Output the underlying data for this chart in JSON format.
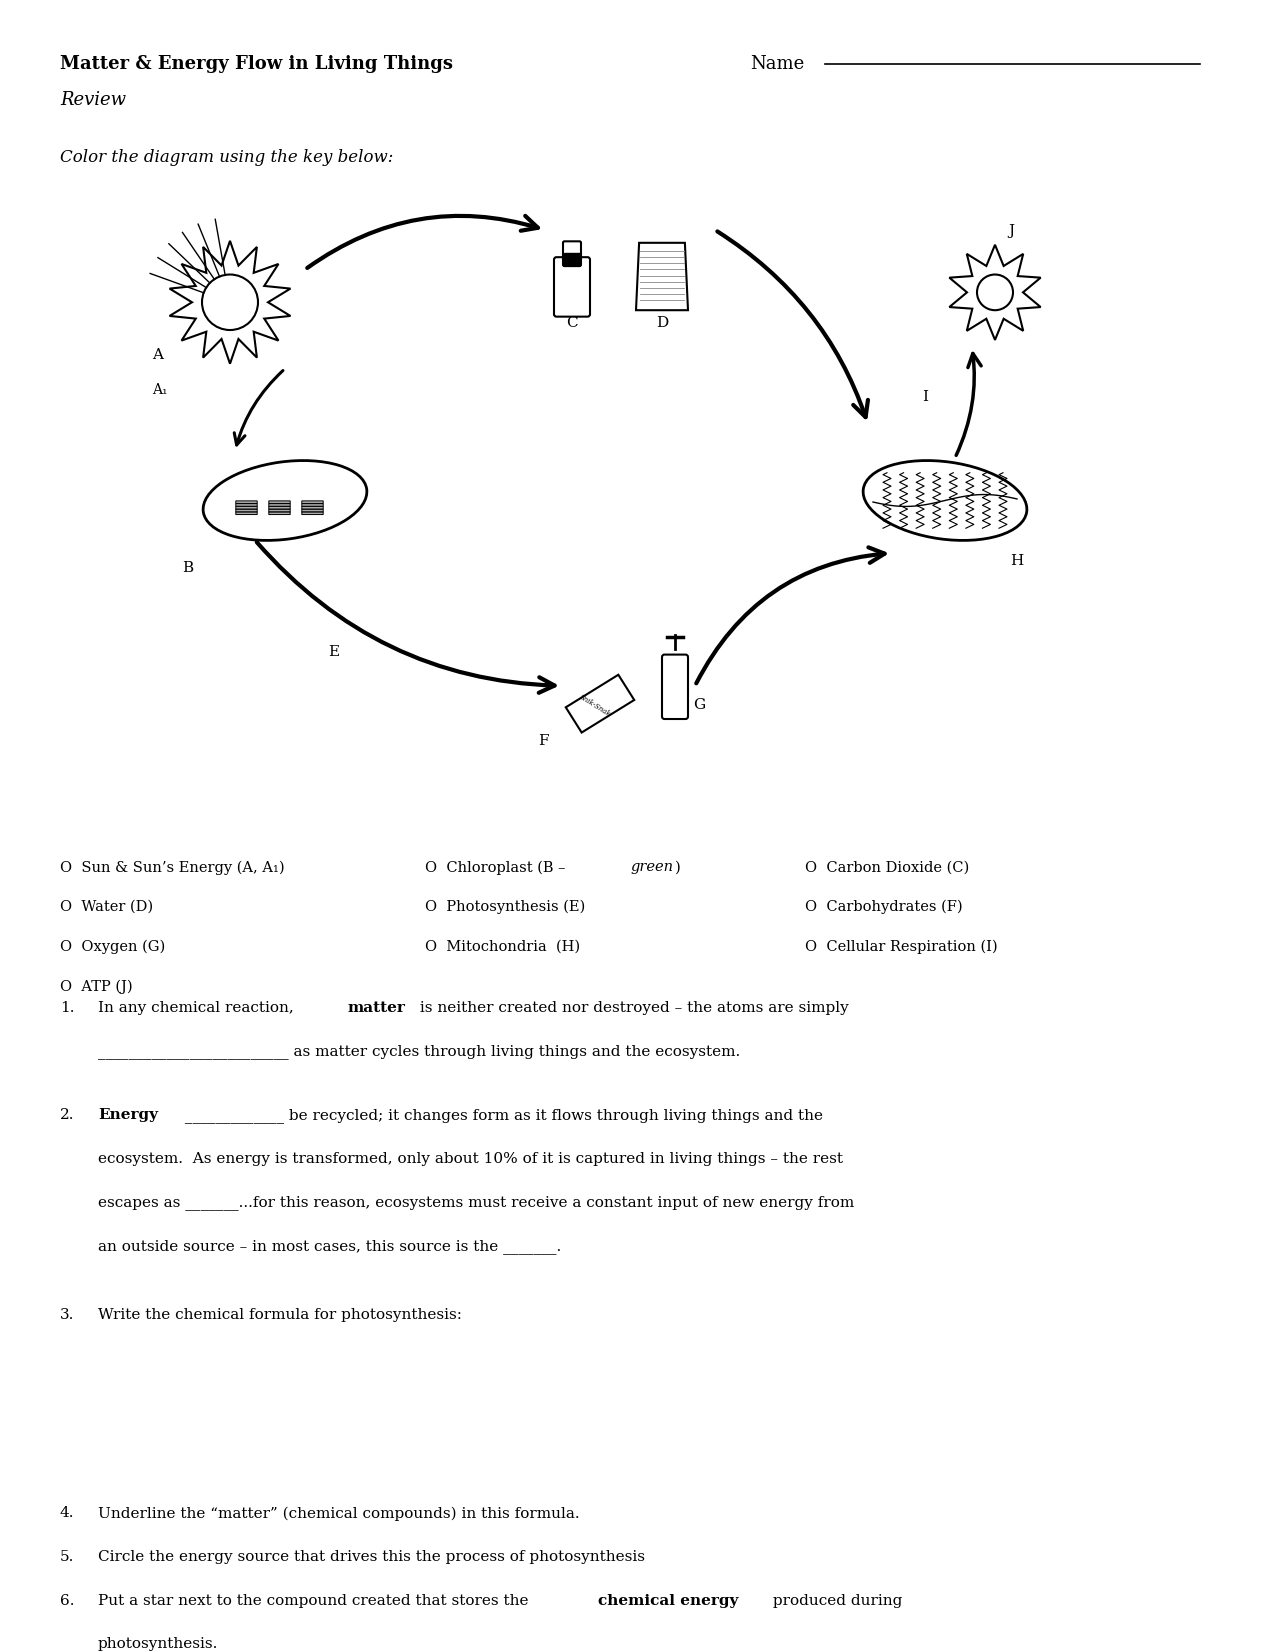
{
  "title": "Matter & Energy Flow in Living Things",
  "subtitle": "Review",
  "name_label": "Name",
  "color_instruction": "Color the diagram using the key below:",
  "key_col1": [
    "O  Sun & Sun’s Energy (A, A₁)",
    "O  Water (D)",
    "O  Oxygen (G)",
    "O  ATP (J)"
  ],
  "key_col2_pre": "O  Chloroplast (B – ",
  "key_col2_italic": "green",
  "key_col2_post": ")",
  "key_col2_rest": [
    "O  Photosynthesis (E)",
    "O  Mitochondria  (H)"
  ],
  "key_col3": [
    "O  Carbon Dioxide (C)",
    "O  Carbohydrates (F)",
    "O  Cellular Respiration (I)"
  ],
  "q1_pre": "In any chemical reaction, ",
  "q1_bold": "matter",
  "q1_post": " is neither created nor destroyed – the atoms are simply",
  "q1_line2": "_________________________ as matter cycles through living things and the ecosystem.",
  "q2_bold": "Energy",
  "q2_rest": " _____________ be recycled; it changes form as it flows through living things and the",
  "q2_line2": "ecosystem.  As energy is transformed, only about 10% of it is captured in living things – the rest",
  "q2_line3": "escapes as _______...for this reason, ecosystems must receive a constant input of new energy from",
  "q2_line4": "an outside source – in most cases, this source is the _______.  ",
  "q3": "Write the chemical formula for photosynthesis:",
  "q4": "Underline the “matter” (chemical compounds) in this formula.",
  "q5": "Circle the energy source that drives this the process of photosynthesis",
  "q6_pre": "Put a star next to the compound created that stores the ",
  "q6_bold": "chemical energy",
  "q6_post": " produced during",
  "q6_line2": "photosynthesis.",
  "bg_color": "#ffffff",
  "text_color": "#000000",
  "font_size_title": 13,
  "font_size_body": 11,
  "font_size_key": 10.5
}
